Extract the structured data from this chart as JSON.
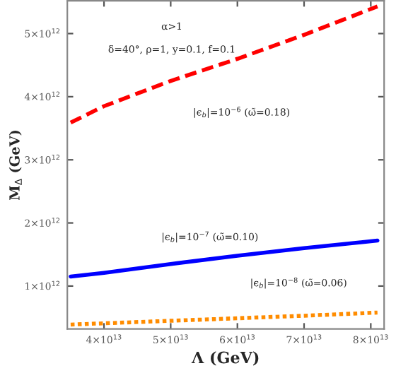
{
  "chart_data": {
    "type": "line",
    "xlabel": "Λ (GeV)",
    "ylabel": "M$_{Δ}$ (GeV)",
    "x": [
      35000000000000.0,
      40000000000000.0,
      50000000000000.0,
      60000000000000.0,
      70000000000000.0,
      81000000000000.0
    ],
    "series": [
      {
        "color": "#ff0000",
        "line_style": "dashed",
        "values": [
          3590000000000.0,
          3850000000000.0,
          4250000000000.0,
          4600000000000.0,
          4980000000000.0,
          5430000000000.0
        ]
      },
      {
        "color": "#0000ff",
        "line_style": "solid",
        "values": [
          1150000000000.0,
          1210000000000.0,
          1350000000000.0,
          1480000000000.0,
          1600000000000.0,
          1720000000000.0
        ]
      },
      {
        "color": "#ff8c00",
        "line_style": "dotted",
        "values": [
          390000000000.0,
          410000000000.0,
          450000000000.0,
          490000000000.0,
          530000000000.0,
          580000000000.0
        ]
      }
    ],
    "xlim": [
      34500000000000.0,
      82000000000000.0
    ],
    "ylim": [
      320000000000.0,
      5520000000000.0
    ],
    "xticks": [
      {
        "value": 40000000000000.0,
        "label": "4×10$^{13}$"
      },
      {
        "value": 50000000000000.0,
        "label": "5×10$^{13}$"
      },
      {
        "value": 60000000000000.0,
        "label": "6×10$^{13}$"
      },
      {
        "value": 70000000000000.0,
        "label": "7×10$^{13}$"
      },
      {
        "value": 80000000000000.0,
        "label": "8×10$^{13}$"
      }
    ],
    "yticks": [
      {
        "value": 1000000000000.0,
        "label": "1×10$^{12}$"
      },
      {
        "value": 2000000000000.0,
        "label": "2×10$^{12}$"
      },
      {
        "value": 3000000000000.0,
        "label": "3×10$^{12}$"
      },
      {
        "value": 4000000000000.0,
        "label": "4×10$^{12}$"
      },
      {
        "value": 5000000000000.0,
        "label": "5×10$^{12}$"
      }
    ],
    "grid": false,
    "legend": false,
    "annotations": [
      "α>1",
      "δ=40°, ρ=1, y=0.1, f=0.1",
      "|ϵ$_{b}$|=10$^{−6}$ (ω̃=0.18)",
      "|ϵ$_{b}$|=10$^{−7}$ (ω̃=0.10)",
      "|ϵ$_{b}$|=10$^{−8}$ (ω̃=0.06)"
    ]
  }
}
